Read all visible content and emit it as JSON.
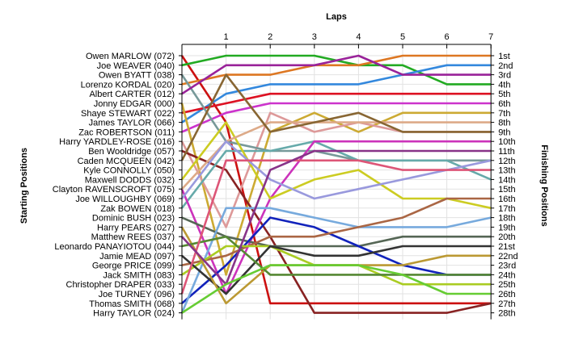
{
  "chart_data": {
    "type": "line",
    "title": "Laps",
    "ylabel_left": "Starting Positions",
    "ylabel_right": "Finishing Positions",
    "x_ticks": [
      "1",
      "2",
      "3",
      "4",
      "5",
      "6",
      "7"
    ],
    "grid": true,
    "right_ticks": [
      "1st",
      "2nd",
      "3rd",
      "4th",
      "5th",
      "6th",
      "7th",
      "8th",
      "9th",
      "10th",
      "11th",
      "12th",
      "13th",
      "14th",
      "15th",
      "16th",
      "17th",
      "18th",
      "19th",
      "20th",
      "21st",
      "22nd",
      "23rd",
      "24th",
      "25th",
      "26th",
      "27th",
      "28th"
    ],
    "series": [
      {
        "name": "Owen MARLOW (072)",
        "color": "#cc1111",
        "positions": [
          1,
          8,
          27,
          27,
          27,
          27,
          27,
          27
        ]
      },
      {
        "name": "Joe WEAVER (040)",
        "color": "#22aa22",
        "positions": [
          2,
          1,
          1,
          1,
          2,
          2,
          4,
          4
        ]
      },
      {
        "name": "Owen BYATT (038)",
        "color": "#3388dd",
        "positions": [
          8,
          5,
          4,
          4,
          4,
          3,
          2,
          2
        ]
      },
      {
        "name": "Lorenzo KORDAL (020)",
        "color": "#dd7722",
        "positions": [
          4,
          3,
          3,
          2,
          2,
          1,
          1,
          1
        ]
      },
      {
        "name": "Albert CARTER (012)",
        "color": "#dd1122",
        "positions": [
          7,
          6,
          5,
          5,
          5,
          5,
          5,
          5
        ]
      },
      {
        "name": "Jonny EDGAR (000)",
        "color": "#cc33cc",
        "positions": [
          9,
          7,
          6,
          6,
          6,
          6,
          6,
          6
        ]
      },
      {
        "name": "Shaye STEWART (022)",
        "color": "#ccaa33",
        "positions": [
          6,
          24,
          9,
          7,
          9,
          7,
          7,
          7
        ]
      },
      {
        "name": "James TAYLOR (066)",
        "color": "#dd9999",
        "positions": [
          10,
          19,
          7,
          9,
          8,
          9,
          9,
          9
        ]
      },
      {
        "name": "Zac ROBERTSON (011)",
        "color": "#779999",
        "positions": [
          3,
          10,
          11,
          11,
          12,
          12,
          12,
          12
        ]
      },
      {
        "name": "Harry YARDLEY-ROSE (016)",
        "color": "#992299",
        "positions": [
          5,
          2,
          2,
          2,
          1,
          3,
          3,
          3
        ]
      },
      {
        "name": "Ben Wooldridge (057)",
        "color": "#882222",
        "positions": [
          11,
          13,
          20,
          28,
          28,
          28,
          28,
          27
        ]
      },
      {
        "name": "Caden MCQUEEN (042)",
        "color": "#66aaaa",
        "positions": [
          17,
          11,
          11,
          10,
          12,
          12,
          12,
          14
        ]
      },
      {
        "name": "Kyle CONNOLLY (050)",
        "color": "#cc33bb",
        "positions": [
          15,
          26,
          16,
          10,
          10,
          10,
          10,
          10
        ]
      },
      {
        "name": "Maxwell DODDS (032)",
        "color": "#cccc22",
        "positions": [
          14,
          8,
          16,
          14,
          13,
          16,
          16,
          17
        ]
      },
      {
        "name": "Clayton RAVENSCROFT (075)",
        "color": "#ddaa88",
        "positions": [
          15,
          10,
          8,
          8,
          8,
          8,
          8,
          8
        ]
      },
      {
        "name": "Joe WILLOUGHBY (069)",
        "color": "#9999dd",
        "positions": [
          16,
          10,
          14,
          16,
          15,
          14,
          13,
          12
        ]
      },
      {
        "name": "Zak BOWEN (018)",
        "color": "#556655",
        "positions": [
          18,
          20,
          21,
          21,
          21,
          20,
          20,
          20
        ]
      },
      {
        "name": "Dominic BUSH (023)",
        "color": "#1122bb",
        "positions": [
          27,
          23,
          18,
          19,
          21,
          23,
          24,
          24
        ]
      },
      {
        "name": "Harry PEARS (027)",
        "color": "#77aadd",
        "positions": [
          28,
          17,
          17,
          18,
          19,
          19,
          19,
          18
        ]
      },
      {
        "name": "Matthew REES (037)",
        "color": "#aa6644",
        "positions": [
          23,
          22,
          20,
          20,
          19,
          18,
          16,
          16
        ]
      },
      {
        "name": "Leonardo PANAYIOTOU (044)",
        "color": "#aacc22",
        "positions": [
          24,
          21,
          21,
          23,
          23,
          25,
          25,
          25
        ]
      },
      {
        "name": "Jamie MEAD (097)",
        "color": "#333333",
        "positions": [
          22,
          26,
          21,
          22,
          22,
          21,
          21,
          21
        ]
      },
      {
        "name": "George PRICE (099)",
        "color": "#bb9933",
        "positions": [
          19,
          27,
          23,
          23,
          23,
          23,
          22,
          22
        ]
      },
      {
        "name": "Jack SMITH (083)",
        "color": "#558833",
        "positions": [
          21,
          20,
          24,
          24,
          24,
          24,
          24,
          24
        ]
      },
      {
        "name": "Christopher DRAPER (033)",
        "color": "#dd5577",
        "positions": [
          26,
          12,
          12,
          12,
          12,
          13,
          13,
          13
        ]
      },
      {
        "name": "Joe TURNEY (096)",
        "color": "#886633",
        "positions": [
          12,
          3,
          9,
          8,
          7,
          9,
          9,
          9
        ]
      },
      {
        "name": "Thomas SMITH (068)",
        "color": "#883388",
        "positions": [
          20,
          25,
          13,
          11,
          11,
          11,
          11,
          11
        ]
      },
      {
        "name": "Harry TAYLOR (024)",
        "color": "#66cc33",
        "positions": [
          28,
          25,
          23,
          23,
          23,
          24,
          26,
          26
        ]
      }
    ]
  }
}
